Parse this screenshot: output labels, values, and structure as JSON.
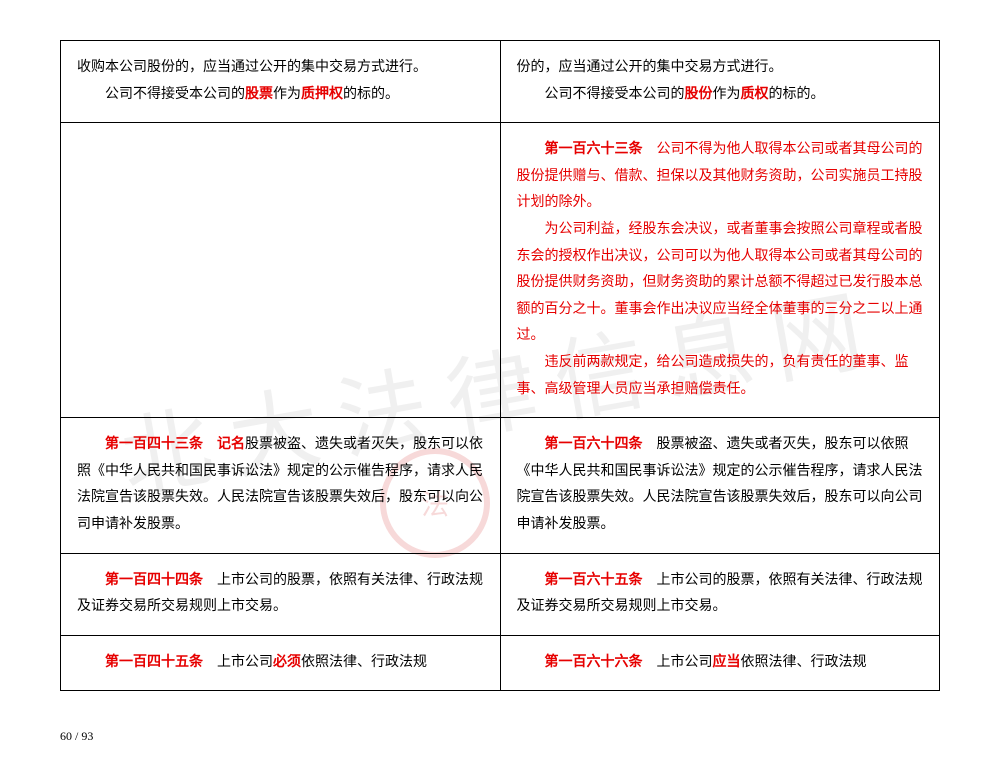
{
  "page": {
    "current": 60,
    "total": 93
  },
  "watermark_text": "北大法律信息网",
  "colors": {
    "red": "#e60000",
    "black": "#000000",
    "border": "#000000",
    "background": "#ffffff",
    "watermark": "rgba(0,0,0,0.06)",
    "seal": "rgba(200,0,0,0.15)"
  },
  "typography": {
    "body_fontsize": 14,
    "line_height": 1.9,
    "footer_fontsize": 12,
    "font_family": "SimSun"
  },
  "rows": [
    {
      "left": {
        "p1_a": "收购本公司股份的，应当通过公开的集中交易方式进行。",
        "p2_a": "公司不得接受本公司的",
        "p2_b": "股票",
        "p2_c": "作为",
        "p2_d": "质押权",
        "p2_e": "的标的。"
      },
      "right": {
        "p1_a": "份的，应当通过公开的集中交易方式进行。",
        "p2_a": "公司不得接受本公司的",
        "p2_b": "股份",
        "p2_c": "作为",
        "p2_d": "质权",
        "p2_e": "的标的。"
      }
    },
    {
      "left_empty": true,
      "right": {
        "art": "第一百六十三条",
        "p1": "公司不得为他人取得本公司或者其母公司的股份提供赠与、借款、担保以及其他财务资助，公司实施员工持股计划的除外。",
        "p2": "为公司利益，经股东会决议，或者董事会按照公司章程或者股东会的授权作出决议，公司可以为他人取得本公司或者其母公司的股份提供财务资助，但财务资助的累计总额不得超过已发行股本总额的百分之十。董事会作出决议应当经全体董事的三分之二以上通过。",
        "p3": "违反前两款规定，给公司造成损失的，负有责任的董事、监事、高级管理人员应当承担赔偿责任。"
      }
    },
    {
      "left": {
        "art": "第一百四十三条",
        "kw": "记名",
        "p1": "股票被盗、遗失或者灭失，股东可以依照《中华人民共和国民事诉讼法》规定的公示催告程序，请求人民法院宣告该股票失效。人民法院宣告该股票失效后，股东可以向公司申请补发股票。"
      },
      "right": {
        "art": "第一百六十四条",
        "p1": "股票被盗、遗失或者灭失，股东可以依照《中华人民共和国民事诉讼法》规定的公示催告程序，请求人民法院宣告该股票失效。人民法院宣告该股票失效后，股东可以向公司申请补发股票。"
      }
    },
    {
      "left": {
        "art": "第一百四十四条",
        "p1": "上市公司的股票，依照有关法律、行政法规及证券交易所交易规则上市交易。"
      },
      "right": {
        "art": "第一百六十五条",
        "p1": "上市公司的股票，依照有关法律、行政法规及证券交易所交易规则上市交易。"
      }
    },
    {
      "left": {
        "art": "第一百四十五条",
        "p1_a": "上市公司",
        "kw": "必须",
        "p1_b": "依照法律、行政法规"
      },
      "right": {
        "art": "第一百六十六条",
        "p1_a": "上市公司",
        "kw": "应当",
        "p1_b": "依照法律、行政法规"
      }
    }
  ]
}
